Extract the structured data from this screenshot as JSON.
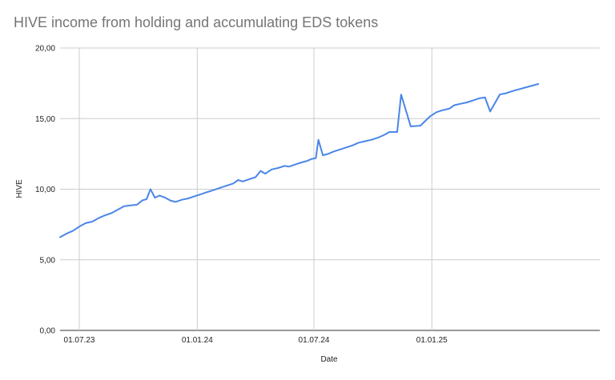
{
  "chart_data": {
    "type": "line",
    "title": "HIVE income from holding and accumulating EDS tokens",
    "xlabel": "Date",
    "ylabel": "HIVE",
    "ylim": [
      0,
      20
    ],
    "yticks": [
      "0,00",
      "5,00",
      "10,00",
      "15,00",
      "20,00"
    ],
    "xticks": [
      {
        "date": "2023-07-01",
        "label": "01.07.23"
      },
      {
        "date": "2024-01-01",
        "label": "01.01.24"
      },
      {
        "date": "2024-07-01",
        "label": "01.07.24"
      },
      {
        "date": "2025-01-01",
        "label": "01.01.25"
      }
    ],
    "x_range": [
      "2023-06-01",
      "2025-09-20"
    ],
    "grid": true,
    "line_color": "#4a86e8",
    "series": [
      {
        "points": [
          [
            "2023-06-01",
            6.6
          ],
          [
            "2023-06-11",
            6.85
          ],
          [
            "2023-06-21",
            7.05
          ],
          [
            "2023-07-01",
            7.35
          ],
          [
            "2023-07-11",
            7.6
          ],
          [
            "2023-07-21",
            7.7
          ],
          [
            "2023-07-31",
            7.95
          ],
          [
            "2023-08-10",
            8.15
          ],
          [
            "2023-08-20",
            8.3
          ],
          [
            "2023-08-30",
            8.55
          ],
          [
            "2023-09-09",
            8.8
          ],
          [
            "2023-09-19",
            8.85
          ],
          [
            "2023-09-29",
            8.9
          ],
          [
            "2023-10-07",
            9.2
          ],
          [
            "2023-10-14",
            9.3
          ],
          [
            "2023-10-20",
            10.0
          ],
          [
            "2023-10-27",
            9.4
          ],
          [
            "2023-11-03",
            9.55
          ],
          [
            "2023-11-12",
            9.4
          ],
          [
            "2023-11-20",
            9.2
          ],
          [
            "2023-11-28",
            9.1
          ],
          [
            "2023-12-08",
            9.25
          ],
          [
            "2023-12-18",
            9.35
          ],
          [
            "2023-12-28",
            9.5
          ],
          [
            "2024-01-07",
            9.65
          ],
          [
            "2024-01-17",
            9.8
          ],
          [
            "2024-01-27",
            9.95
          ],
          [
            "2024-02-06",
            10.1
          ],
          [
            "2024-02-16",
            10.25
          ],
          [
            "2024-02-26",
            10.4
          ],
          [
            "2024-03-05",
            10.65
          ],
          [
            "2024-03-12",
            10.55
          ],
          [
            "2024-03-22",
            10.7
          ],
          [
            "2024-04-01",
            10.85
          ],
          [
            "2024-04-09",
            11.3
          ],
          [
            "2024-04-16",
            11.1
          ],
          [
            "2024-04-26",
            11.4
          ],
          [
            "2024-05-06",
            11.5
          ],
          [
            "2024-05-16",
            11.65
          ],
          [
            "2024-05-23",
            11.6
          ],
          [
            "2024-06-02",
            11.75
          ],
          [
            "2024-06-12",
            11.9
          ],
          [
            "2024-06-20",
            12.0
          ],
          [
            "2024-06-28",
            12.15
          ],
          [
            "2024-07-04",
            12.2
          ],
          [
            "2024-07-08",
            13.5
          ],
          [
            "2024-07-15",
            12.4
          ],
          [
            "2024-07-23",
            12.5
          ],
          [
            "2024-07-31",
            12.65
          ],
          [
            "2024-08-10",
            12.8
          ],
          [
            "2024-08-20",
            12.95
          ],
          [
            "2024-08-30",
            13.1
          ],
          [
            "2024-09-09",
            13.3
          ],
          [
            "2024-09-19",
            13.4
          ],
          [
            "2024-09-29",
            13.5
          ],
          [
            "2024-10-09",
            13.65
          ],
          [
            "2024-10-19",
            13.85
          ],
          [
            "2024-10-27",
            14.05
          ],
          [
            "2024-11-08",
            14.05
          ],
          [
            "2024-11-14",
            16.7
          ],
          [
            "2024-11-29",
            14.45
          ],
          [
            "2024-12-14",
            14.5
          ],
          [
            "2024-12-29",
            15.15
          ],
          [
            "2025-01-08",
            15.45
          ],
          [
            "2025-01-18",
            15.6
          ],
          [
            "2025-01-28",
            15.7
          ],
          [
            "2025-02-05",
            15.95
          ],
          [
            "2025-02-15",
            16.05
          ],
          [
            "2025-02-25",
            16.15
          ],
          [
            "2025-03-07",
            16.3
          ],
          [
            "2025-03-17",
            16.45
          ],
          [
            "2025-03-25",
            16.5
          ],
          [
            "2025-04-02",
            15.5
          ],
          [
            "2025-04-17",
            16.7
          ],
          [
            "2025-04-27",
            16.8
          ],
          [
            "2025-05-07",
            16.95
          ],
          [
            "2025-05-27",
            17.2
          ],
          [
            "2025-06-16",
            17.45
          ]
        ]
      }
    ]
  }
}
